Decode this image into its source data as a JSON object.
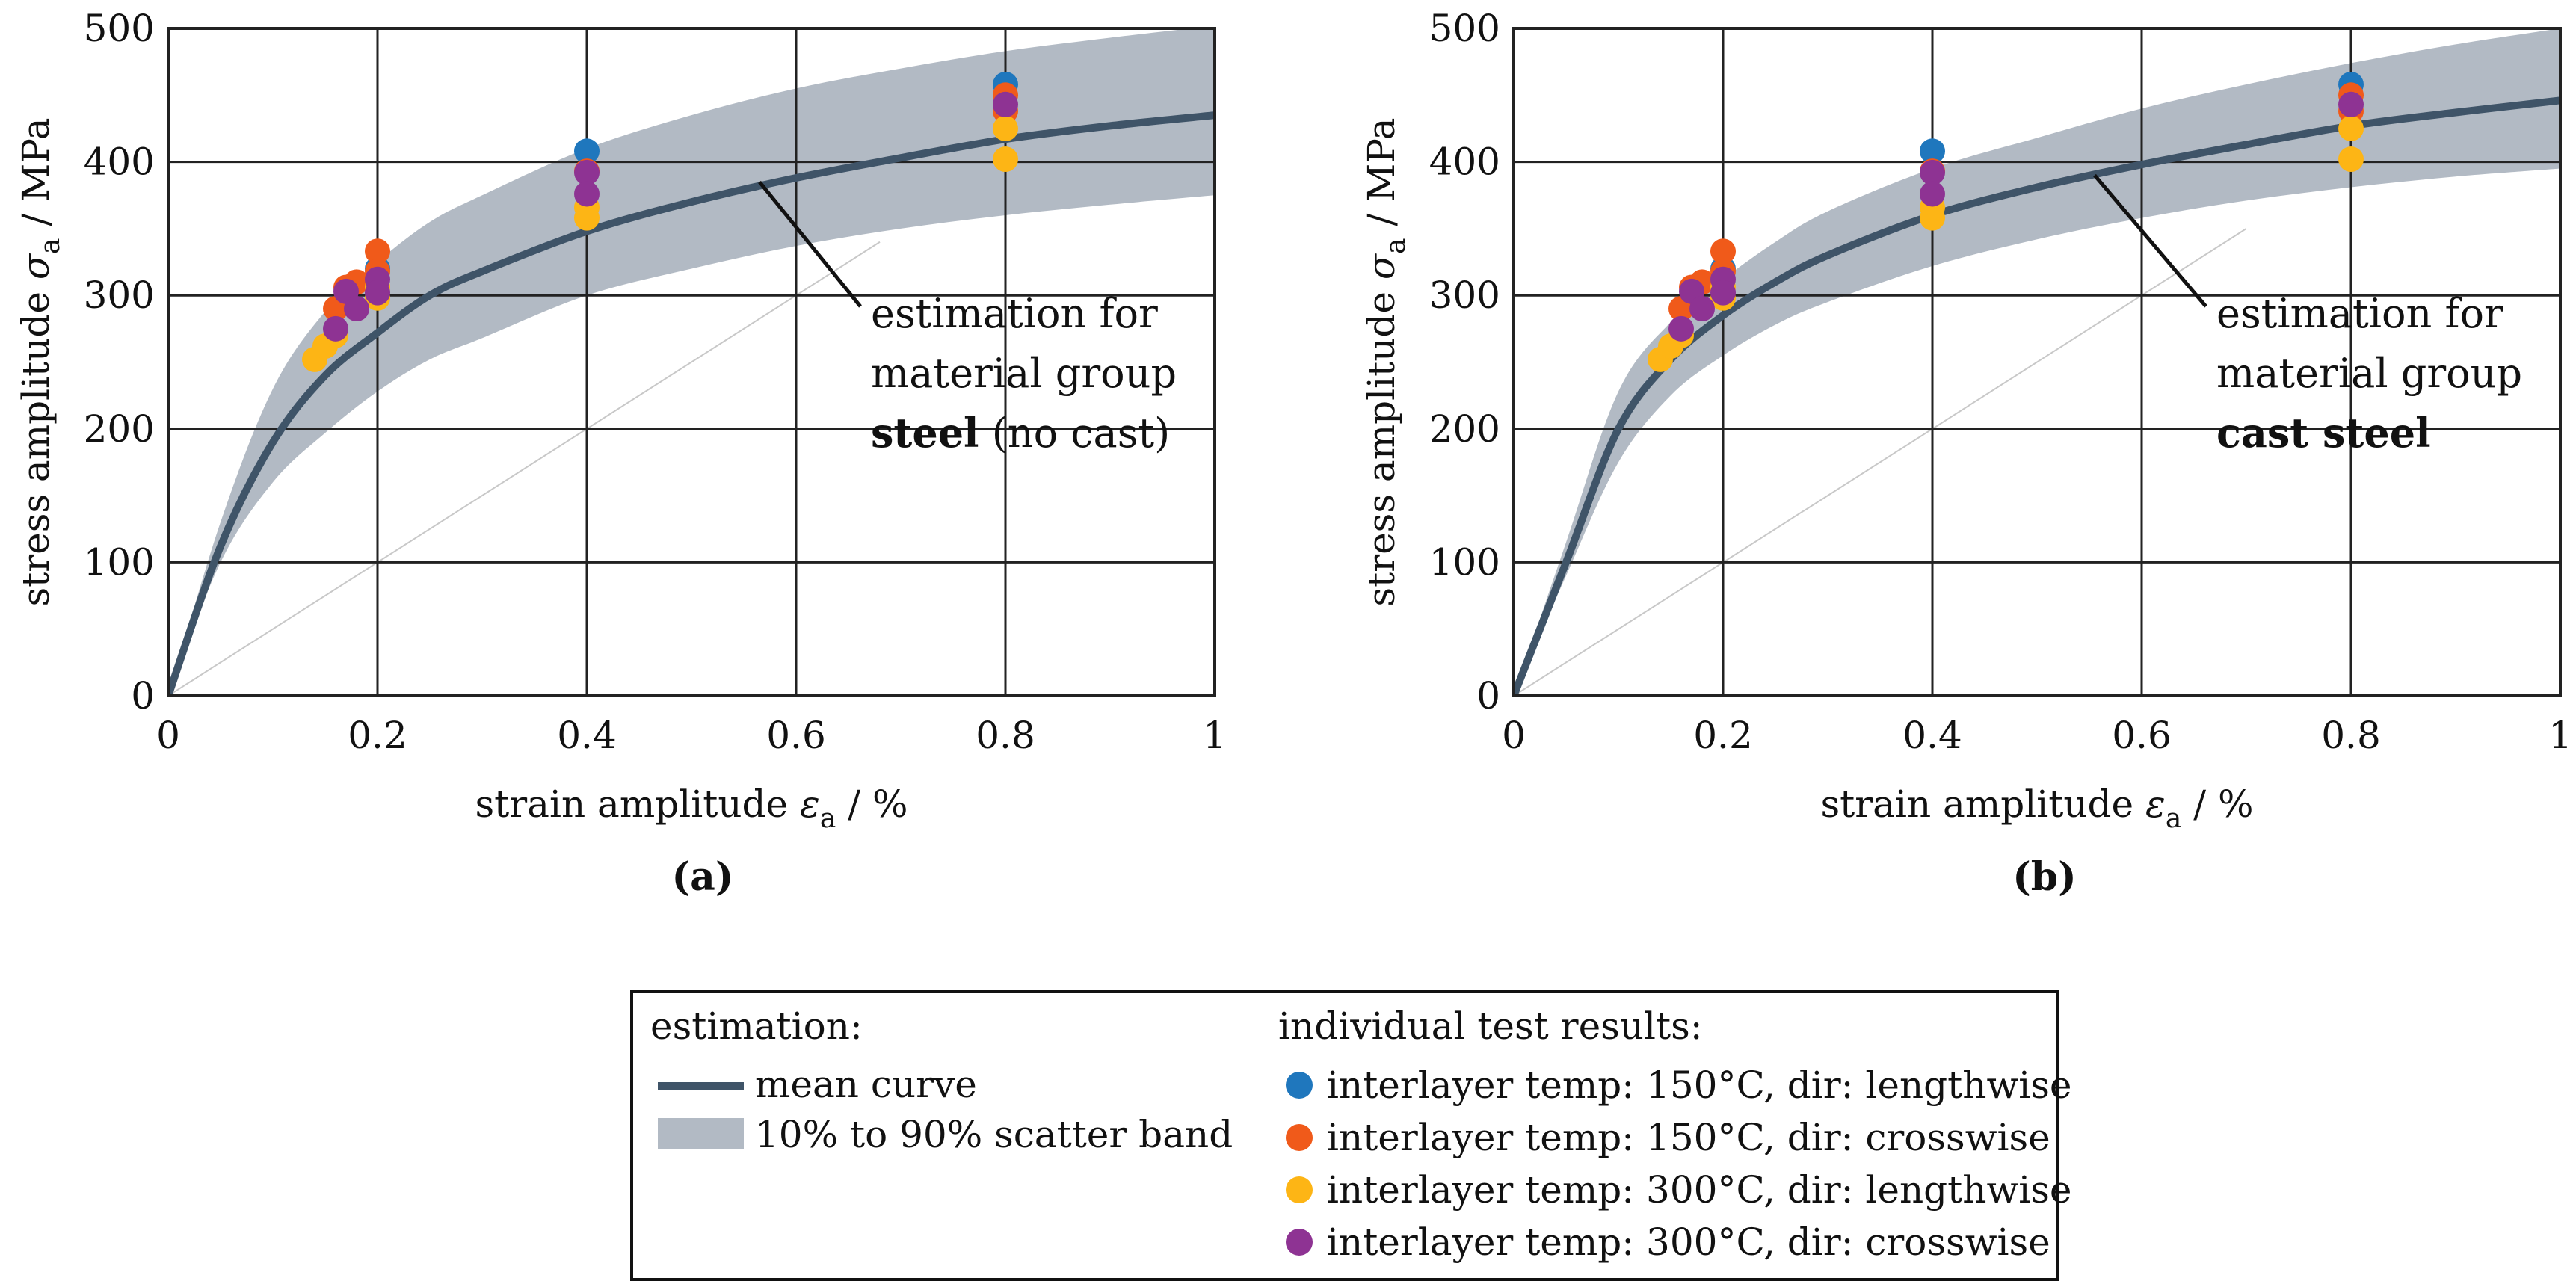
{
  "colors": {
    "mean_curve": "#3f5468",
    "scatter_band": "#b2bac4",
    "grid": "#222222",
    "helper_line": "#c8c8c8",
    "dot_150_lengthwise": "#1f77bd",
    "dot_150_crosswise": "#f05a1a",
    "dot_300_lengthwise": "#fdb515",
    "dot_300_crosswise": "#8e3393"
  },
  "chart_data": [
    {
      "id": "a",
      "type": "line",
      "caption": "(a)",
      "xlabel": "strain amplitude",
      "xlabel_symbol": "ε",
      "xlabel_sub": "a",
      "xlabel_unit": " / %",
      "ylabel": "stress amplitude",
      "ylabel_symbol": "σ",
      "ylabel_sub": "a",
      "ylabel_unit": " / MPa",
      "xlim": [
        0,
        1
      ],
      "ylim": [
        0,
        500
      ],
      "xticks": [
        0,
        0.2,
        0.4,
        0.6,
        0.8,
        1
      ],
      "xtick_labels": [
        "0",
        "0.2",
        "0.4",
        "0.6",
        "0.8",
        "1"
      ],
      "yticks": [
        0,
        100,
        200,
        300,
        400,
        500
      ],
      "ytick_labels": [
        "0",
        "100",
        "200",
        "300",
        "400",
        "500"
      ],
      "grid": true,
      "annotation_lines": [
        "estimation for",
        "material group"
      ],
      "annotation_bold": "steel",
      "annotation_rest": " (no cast)",
      "annotation_target": [
        0.565,
        385
      ],
      "mean_curve": {
        "x": [
          0,
          0.05,
          0.1,
          0.15,
          0.2,
          0.25,
          0.3,
          0.4,
          0.5,
          0.6,
          0.7,
          0.8,
          0.9,
          1.0
        ],
        "y": [
          0,
          112,
          190,
          240,
          272,
          300,
          318,
          348,
          370,
          388,
          403,
          417,
          427,
          435
        ]
      },
      "band_upper": {
        "x": [
          0,
          0.05,
          0.1,
          0.15,
          0.2,
          0.25,
          0.3,
          0.4,
          0.5,
          0.6,
          0.7,
          0.8,
          0.9,
          1.0
        ],
        "y": [
          0,
          130,
          230,
          288,
          325,
          355,
          375,
          410,
          435,
          455,
          470,
          483,
          493,
          502
        ]
      },
      "band_lower": {
        "x": [
          0,
          0.05,
          0.1,
          0.15,
          0.2,
          0.25,
          0.3,
          0.4,
          0.5,
          0.6,
          0.7,
          0.8,
          0.9,
          1.0
        ],
        "y": [
          0,
          100,
          160,
          197,
          228,
          252,
          268,
          300,
          320,
          337,
          350,
          360,
          368,
          375
        ]
      },
      "helper_line": {
        "x": [
          0,
          0.68
        ],
        "y": [
          0,
          340
        ]
      },
      "series": [
        {
          "name": "interlayer temp: 150°C, dir: lengthwise",
          "color_key": "dot_150_lengthwise",
          "x": [
            0.2,
            0.4,
            0.8
          ],
          "y": [
            320,
            408,
            458
          ]
        },
        {
          "name": "interlayer temp: 150°C, dir: crosswise",
          "color_key": "dot_150_crosswise",
          "x": [
            0.16,
            0.17,
            0.18,
            0.2,
            0.2,
            0.4,
            0.8,
            0.8
          ],
          "y": [
            290,
            306,
            310,
            333,
            318,
            393,
            450,
            438
          ]
        },
        {
          "name": "interlayer temp: 300°C, dir: lengthwise",
          "color_key": "dot_300_lengthwise",
          "x": [
            0.14,
            0.15,
            0.16,
            0.2,
            0.2,
            0.4,
            0.4,
            0.8,
            0.8
          ],
          "y": [
            252,
            262,
            270,
            298,
            306,
            358,
            366,
            402,
            425
          ]
        },
        {
          "name": "interlayer temp: 300°C, dir: crosswise",
          "color_key": "dot_300_crosswise",
          "x": [
            0.16,
            0.17,
            0.18,
            0.2,
            0.2,
            0.4,
            0.4,
            0.8
          ],
          "y": [
            275,
            303,
            290,
            312,
            302,
            392,
            376,
            443
          ]
        }
      ]
    },
    {
      "id": "b",
      "type": "line",
      "caption": "(b)",
      "xlabel": "strain amplitude",
      "xlabel_symbol": "ε",
      "xlabel_sub": "a",
      "xlabel_unit": " / %",
      "ylabel": "stress amplitude",
      "ylabel_symbol": "σ",
      "ylabel_sub": "a",
      "ylabel_unit": " / MPa",
      "xlim": [
        0,
        1
      ],
      "ylim": [
        0,
        500
      ],
      "xticks": [
        0,
        0.2,
        0.4,
        0.6,
        0.8,
        1
      ],
      "xtick_labels": [
        "0",
        "0.2",
        "0.4",
        "0.6",
        "0.8",
        "1"
      ],
      "yticks": [
        0,
        100,
        200,
        300,
        400,
        500
      ],
      "ytick_labels": [
        "0",
        "100",
        "200",
        "300",
        "400",
        "500"
      ],
      "grid": true,
      "annotation_lines": [
        "estimation for",
        "material group"
      ],
      "annotation_bold": "cast steel",
      "annotation_rest": "",
      "annotation_target": [
        0.555,
        390
      ],
      "mean_curve": {
        "x": [
          0,
          0.05,
          0.1,
          0.15,
          0.2,
          0.25,
          0.3,
          0.4,
          0.5,
          0.6,
          0.7,
          0.8,
          0.9,
          1.0
        ],
        "y": [
          0,
          100,
          200,
          252,
          285,
          310,
          330,
          360,
          381,
          398,
          413,
          427,
          437,
          446
        ]
      },
      "band_upper": {
        "x": [
          0,
          0.05,
          0.1,
          0.15,
          0.2,
          0.25,
          0.3,
          0.4,
          0.5,
          0.6,
          0.7,
          0.8,
          0.9,
          1.0
        ],
        "y": [
          0,
          115,
          228,
          280,
          312,
          340,
          363,
          395,
          418,
          440,
          458,
          474,
          488,
          500
        ]
      },
      "band_lower": {
        "x": [
          0,
          0.05,
          0.1,
          0.15,
          0.2,
          0.25,
          0.3,
          0.4,
          0.5,
          0.6,
          0.7,
          0.8,
          0.9,
          1.0
        ],
        "y": [
          0,
          90,
          175,
          225,
          255,
          278,
          295,
          322,
          342,
          358,
          371,
          381,
          389,
          395
        ]
      },
      "helper_line": {
        "x": [
          0,
          0.7
        ],
        "y": [
          0,
          350
        ]
      },
      "series": [
        {
          "name": "interlayer temp: 150°C, dir: lengthwise",
          "color_key": "dot_150_lengthwise",
          "x": [
            0.2,
            0.4,
            0.8
          ],
          "y": [
            320,
            408,
            458
          ]
        },
        {
          "name": "interlayer temp: 150°C, dir: crosswise",
          "color_key": "dot_150_crosswise",
          "x": [
            0.16,
            0.17,
            0.18,
            0.2,
            0.2,
            0.4,
            0.8,
            0.8
          ],
          "y": [
            290,
            306,
            310,
            333,
            318,
            393,
            450,
            438
          ]
        },
        {
          "name": "interlayer temp: 300°C, dir: lengthwise",
          "color_key": "dot_300_lengthwise",
          "x": [
            0.14,
            0.15,
            0.16,
            0.2,
            0.2,
            0.4,
            0.4,
            0.8,
            0.8
          ],
          "y": [
            252,
            262,
            270,
            298,
            306,
            358,
            366,
            402,
            425
          ]
        },
        {
          "name": "interlayer temp: 300°C, dir: crosswise",
          "color_key": "dot_300_crosswise",
          "x": [
            0.16,
            0.17,
            0.18,
            0.2,
            0.2,
            0.4,
            0.4,
            0.8
          ],
          "y": [
            275,
            303,
            290,
            312,
            302,
            392,
            376,
            443
          ]
        }
      ]
    }
  ],
  "legend": {
    "estimation_heading": "estimation:",
    "mean_curve_label": "mean curve",
    "band_label": "10% to 90% scatter band",
    "results_heading": "individual test results:",
    "items": [
      {
        "label": "interlayer temp: 150°C, dir: lengthwise",
        "color_key": "dot_150_lengthwise"
      },
      {
        "label": "interlayer temp: 150°C, dir: crosswise",
        "color_key": "dot_150_crosswise"
      },
      {
        "label": "interlayer temp: 300°C, dir: lengthwise",
        "color_key": "dot_300_lengthwise"
      },
      {
        "label": "interlayer temp: 300°C, dir: crosswise",
        "color_key": "dot_300_crosswise"
      }
    ]
  }
}
